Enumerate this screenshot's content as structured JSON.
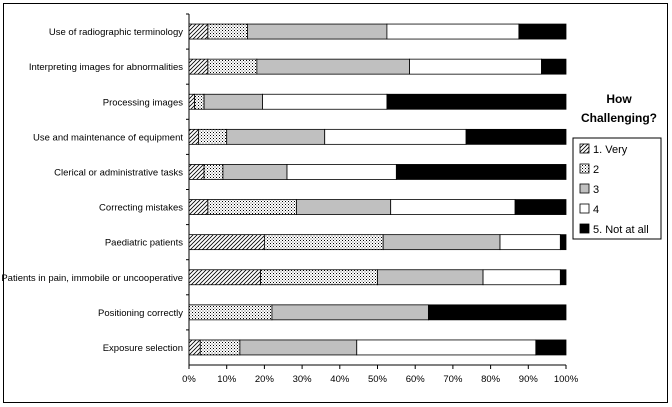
{
  "chart_data": {
    "type": "bar",
    "orientation": "horizontal",
    "stacked": "percent",
    "categories": [
      "Use of radiographic terminology",
      "Interpreting images for abnormalities",
      "Processing images",
      "Use and maintenance of equipment",
      "Clerical or administrative tasks",
      "Correcting mistakes",
      "Paediatric patients",
      "Patients in pain, immobile or uncooperative",
      "Positioning correctly",
      "Exposure selection"
    ],
    "series": [
      {
        "name": "1. Very",
        "pattern": "diagonal",
        "values": [
          5,
          5,
          1.5,
          2.5,
          4,
          5,
          20,
          19,
          0,
          3
        ]
      },
      {
        "name": "2",
        "pattern": "dots",
        "values": [
          10.5,
          13,
          2.5,
          7.5,
          5,
          23.5,
          31.5,
          31,
          22,
          10.5
        ]
      },
      {
        "name": "3",
        "pattern": "gray",
        "values": [
          37,
          40.5,
          15.5,
          26,
          17,
          25,
          31,
          28,
          41.5,
          31
        ]
      },
      {
        "name": "4",
        "pattern": "white",
        "values": [
          35,
          35,
          33,
          37.5,
          29,
          33,
          16,
          20.5,
          0,
          47.5
        ]
      },
      {
        "name": "5. Not at all",
        "pattern": "black",
        "values": [
          12.5,
          6.5,
          47.5,
          26.5,
          45,
          13.5,
          1.5,
          1.5,
          36.5,
          8
        ]
      }
    ],
    "xlim": [
      0,
      100
    ],
    "x_ticks": [
      "0%",
      "10%",
      "20%",
      "30%",
      "40%",
      "50%",
      "60%",
      "70%",
      "80%",
      "90%",
      "100%"
    ],
    "grid": false,
    "legend_position": "right",
    "legend_title": "How Challenging?"
  }
}
